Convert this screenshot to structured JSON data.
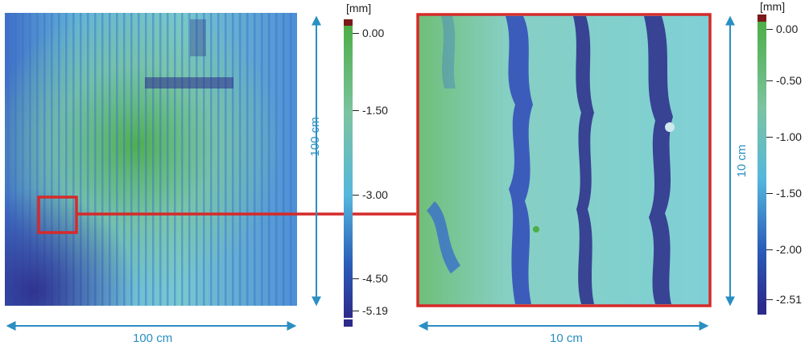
{
  "left_panel": {
    "width_label": "100 cm",
    "height_label": "100 cm"
  },
  "right_panel": {
    "width_label": "10 cm",
    "height_label": "10 cm"
  },
  "colorbar_left": {
    "unit": "[mm]",
    "ticks": [
      "0.00",
      "-1.50",
      "-3.00",
      "-4.50",
      "-5.19"
    ],
    "top_color": "#7a1a1a",
    "bottom_color": "#2c2a8a"
  },
  "colorbar_right": {
    "unit": "[mm]",
    "ticks": [
      "0.00",
      "-0.50",
      "-1.00",
      "-1.50",
      "-2.00",
      "-2.51"
    ],
    "top_color": "#7a1a1a",
    "bottom_color": "#2c2a8a"
  },
  "colors": {
    "highlight": "#d62a2a",
    "dimension": "#2a8fc2",
    "green": "#4cae47",
    "cyan": "#6ec4d6",
    "blue": "#3a6fc9",
    "navy": "#2c2a8a"
  }
}
